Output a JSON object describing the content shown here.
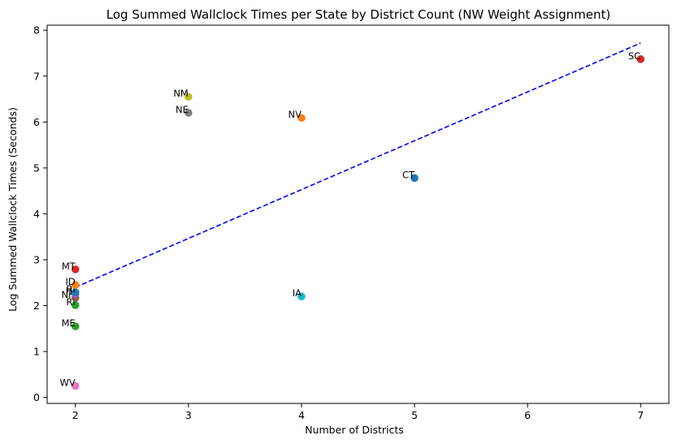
{
  "chart_data": {
    "type": "scatter",
    "title": "Log Summed Wallclock Times per State by District Count (NW Weight Assignment)",
    "xlabel": "Number of Districts",
    "ylabel": "Log Summed Wallclock Times (Seconds)",
    "xlim": [
      1.75,
      7.25
    ],
    "ylim": [
      -0.13,
      8.11
    ],
    "x_ticks": [
      "2",
      "3",
      "4",
      "5",
      "6",
      "7"
    ],
    "y_ticks": [
      "0",
      "1",
      "2",
      "3",
      "4",
      "5",
      "6",
      "7",
      "8"
    ],
    "grid": false,
    "legend": "none",
    "points": [
      {
        "label": "WV",
        "x": 2,
        "y": 0.25,
        "color": "#e377c2"
      },
      {
        "label": "ME",
        "x": 2,
        "y": 1.55,
        "color": "#2ca02c"
      },
      {
        "label": "RI",
        "x": 2,
        "y": 2.01,
        "color": "#2ca02c"
      },
      {
        "label": "NH",
        "x": 2,
        "y": 2.17,
        "color": "#8c564b"
      },
      {
        "label": "HI",
        "x": 2,
        "y": 2.25,
        "color": "#9467bd"
      },
      {
        "label": "RI",
        "x": 2,
        "y": 2.29,
        "color": "#1f77b4"
      },
      {
        "label": "ID",
        "x": 2,
        "y": 2.45,
        "color": "#ff7f0e"
      },
      {
        "label": "MT",
        "x": 2,
        "y": 2.79,
        "color": "#d62728"
      },
      {
        "label": "NM",
        "x": 3,
        "y": 6.55,
        "color": "#bcbd22"
      },
      {
        "label": "NE",
        "x": 3,
        "y": 6.2,
        "color": "#7f7f7f"
      },
      {
        "label": "NV",
        "x": 4,
        "y": 6.09,
        "color": "#ff7f0e"
      },
      {
        "label": "IA",
        "x": 4,
        "y": 2.2,
        "color": "#17becf"
      },
      {
        "label": "CT",
        "x": 5,
        "y": 4.78,
        "color": "#1f77b4"
      },
      {
        "label": "SC",
        "x": 7,
        "y": 7.37,
        "color": "#d62728"
      }
    ],
    "trend_line": {
      "x": [
        2,
        7
      ],
      "y": [
        2.4,
        7.72
      ],
      "color": "#0000ff",
      "style": "dashed"
    }
  }
}
